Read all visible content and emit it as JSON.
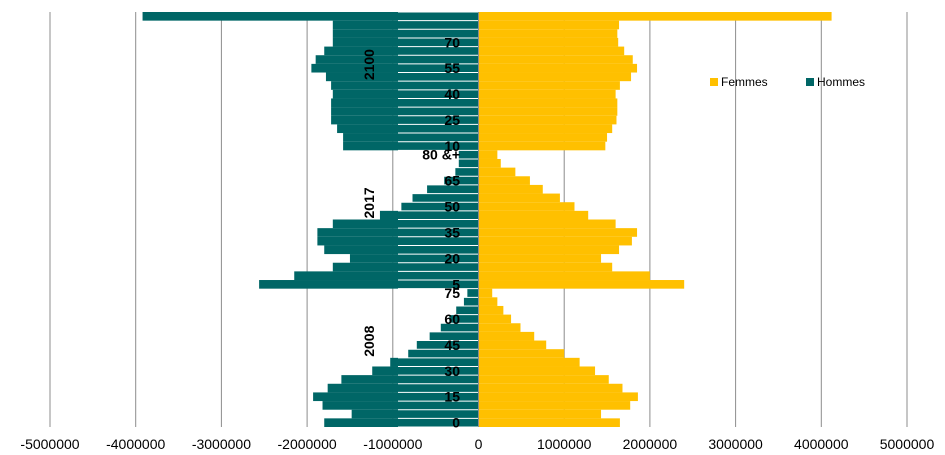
{
  "chart_data": {
    "type": "bar",
    "orientation": "horizontal",
    "layout": "population-pyramid",
    "x_ticks": [
      -5000000,
      -4000000,
      -3000000,
      -2000000,
      -1000000,
      0,
      1000000,
      2000000,
      3000000,
      4000000,
      5000000
    ],
    "xlim": [
      -5000000,
      5000000
    ],
    "grid": "vertical",
    "legend_position": "right",
    "series": [
      {
        "name": "Femmes",
        "color": "#FFC000"
      },
      {
        "name": "Hommes",
        "color": "#006666"
      }
    ],
    "groups": [
      {
        "name": "2008",
        "age_labels": [
          "0",
          "15",
          "30",
          "45",
          "60",
          "75"
        ],
        "hommes": [
          1800000,
          1480000,
          1820000,
          1930000,
          1760000,
          1600000,
          1240000,
          1030000,
          820000,
          720000,
          570000,
          440000,
          340000,
          260000,
          170000,
          130000
        ],
        "femmes": [
          1650000,
          1430000,
          1770000,
          1860000,
          1680000,
          1520000,
          1360000,
          1180000,
          1000000,
          790000,
          650000,
          490000,
          380000,
          290000,
          220000,
          160000
        ]
      },
      {
        "name": "2017",
        "age_labels": [
          "5",
          "20",
          "35",
          "50",
          "65",
          "80 &+"
        ],
        "hommes": [
          2560000,
          2150000,
          1700000,
          1500000,
          1800000,
          1880000,
          1880000,
          1700000,
          1150000,
          900000,
          770000,
          600000,
          400000,
          270000,
          230000,
          230000
        ],
        "femmes": [
          2400000,
          2000000,
          1560000,
          1430000,
          1640000,
          1790000,
          1850000,
          1600000,
          1280000,
          1120000,
          950000,
          750000,
          600000,
          430000,
          260000,
          220000
        ]
      },
      {
        "name": "2100",
        "age_labels": [
          "10",
          "25",
          "40",
          "55",
          "70"
        ],
        "hommes": [
          1580000,
          1580000,
          1650000,
          1720000,
          1720000,
          1720000,
          1700000,
          1720000,
          1780000,
          1950000,
          1900000,
          1800000,
          1700000,
          1700000,
          1700000,
          3920000
        ],
        "femmes": [
          1480000,
          1500000,
          1560000,
          1610000,
          1620000,
          1620000,
          1600000,
          1650000,
          1780000,
          1850000,
          1800000,
          1700000,
          1630000,
          1620000,
          1640000,
          4120000
        ]
      }
    ]
  }
}
